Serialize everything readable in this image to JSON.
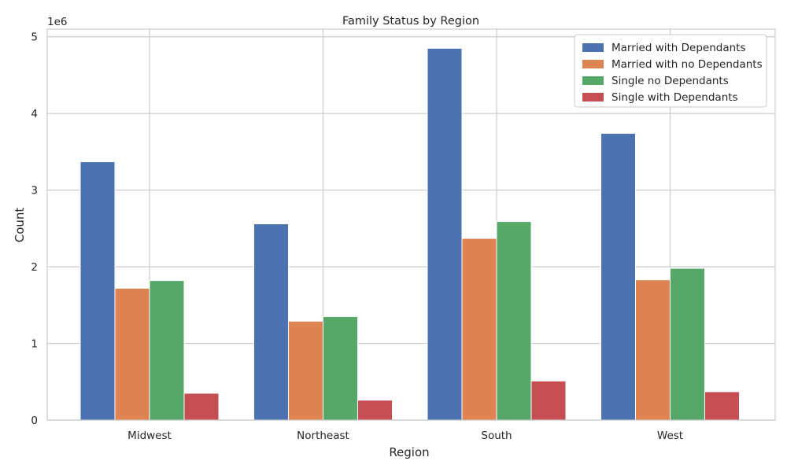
{
  "chart_data": {
    "type": "bar",
    "title": "Family Status by Region",
    "xlabel": "Region",
    "ylabel": "Count",
    "y_offset_label": "1e6",
    "categories": [
      "Midwest",
      "Northeast",
      "South",
      "West"
    ],
    "ylim": [
      0,
      5100000
    ],
    "yticks": [
      0,
      1000000,
      2000000,
      3000000,
      4000000,
      5000000
    ],
    "ytick_labels": [
      "0",
      "1",
      "2",
      "3",
      "4",
      "5"
    ],
    "grid": true,
    "legend_position": "top-right",
    "series": [
      {
        "name": "Married with Dependants",
        "color": "#4c72b0",
        "values": [
          3370000,
          2560000,
          4850000,
          3740000
        ]
      },
      {
        "name": "Married with no Dependants",
        "color": "#dd8452",
        "values": [
          1720000,
          1290000,
          2370000,
          1830000
        ]
      },
      {
        "name": "Single no Dependants",
        "color": "#55a868",
        "values": [
          1820000,
          1350000,
          2590000,
          1980000
        ]
      },
      {
        "name": "Single with Dependants",
        "color": "#c44e52",
        "values": [
          350000,
          260000,
          510000,
          370000
        ]
      }
    ]
  }
}
